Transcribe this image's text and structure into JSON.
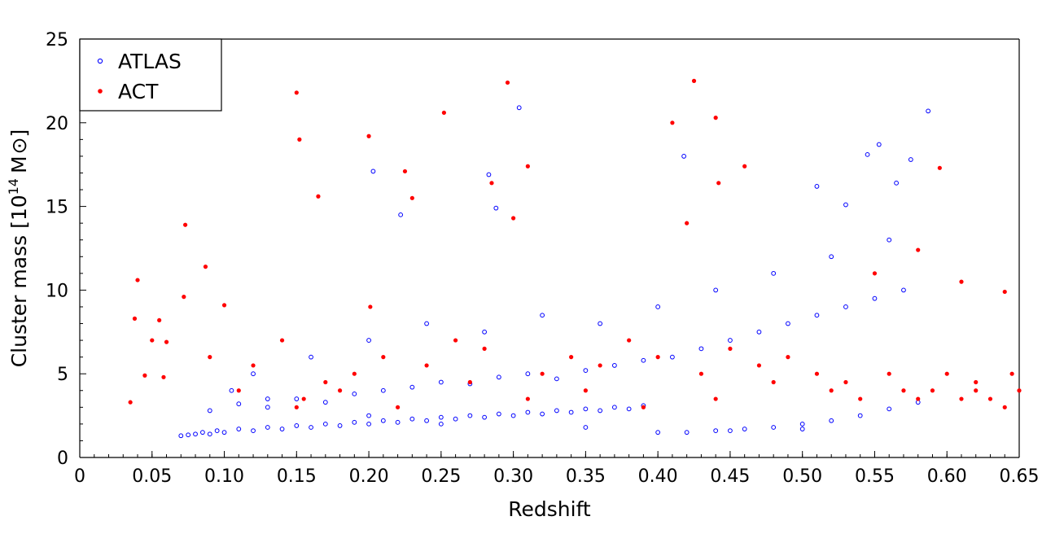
{
  "chart_data": {
    "type": "scatter",
    "xlabel": "Redshift",
    "ylabel": "Cluster mass [10",
    "ylabel_sup": "14",
    "ylabel_unit": "M",
    "ylabel_close": "]",
    "xlim": [
      0,
      0.65
    ],
    "ylim": [
      0,
      25
    ],
    "x_ticks": [
      "0",
      "0.05",
      "0.10",
      "0.15",
      "0.20",
      "0.25",
      "0.30",
      "0.35",
      "0.40",
      "0.45",
      "0.50",
      "0.55",
      "0.60",
      "0.65"
    ],
    "y_ticks": [
      "0",
      "5",
      "10",
      "15",
      "20",
      "25"
    ],
    "grid": false,
    "legend_position": "top-left",
    "series": [
      {
        "name": "ATLAS",
        "marker": "open-circle",
        "color": "#0000ff",
        "x": [
          0.07,
          0.075,
          0.08,
          0.085,
          0.09,
          0.095,
          0.1,
          0.11,
          0.12,
          0.13,
          0.14,
          0.15,
          0.16,
          0.17,
          0.18,
          0.19,
          0.2,
          0.21,
          0.22,
          0.23,
          0.24,
          0.25,
          0.26,
          0.27,
          0.28,
          0.29,
          0.3,
          0.31,
          0.32,
          0.33,
          0.34,
          0.35,
          0.36,
          0.37,
          0.38,
          0.39,
          0.4,
          0.42,
          0.44,
          0.46,
          0.48,
          0.5,
          0.52,
          0.54,
          0.56,
          0.58,
          0.09,
          0.11,
          0.13,
          0.15,
          0.17,
          0.19,
          0.21,
          0.23,
          0.25,
          0.27,
          0.29,
          0.31,
          0.33,
          0.35,
          0.37,
          0.39,
          0.41,
          0.43,
          0.45,
          0.47,
          0.49,
          0.51,
          0.53,
          0.55,
          0.57,
          0.12,
          0.16,
          0.2,
          0.24,
          0.28,
          0.32,
          0.36,
          0.4,
          0.44,
          0.48,
          0.52,
          0.56,
          0.203,
          0.222,
          0.283,
          0.288,
          0.304,
          0.418,
          0.545,
          0.553,
          0.565,
          0.575,
          0.587,
          0.51,
          0.53,
          0.105,
          0.13,
          0.2,
          0.25,
          0.35,
          0.45,
          0.5
        ],
        "y": [
          1.3,
          1.35,
          1.4,
          1.5,
          1.4,
          1.6,
          1.5,
          1.7,
          1.6,
          1.8,
          1.7,
          1.9,
          1.8,
          2.0,
          1.9,
          2.1,
          2.0,
          2.2,
          2.1,
          2.3,
          2.2,
          2.4,
          2.3,
          2.5,
          2.4,
          2.6,
          2.5,
          2.7,
          2.6,
          2.8,
          2.7,
          2.9,
          2.8,
          3.0,
          2.9,
          3.1,
          1.5,
          1.5,
          1.6,
          1.7,
          1.8,
          2.0,
          2.2,
          2.5,
          2.9,
          3.3,
          2.8,
          3.2,
          3.0,
          3.5,
          3.3,
          3.8,
          4.0,
          4.2,
          4.5,
          4.4,
          4.8,
          5.0,
          4.7,
          5.2,
          5.5,
          5.8,
          6.0,
          6.5,
          7.0,
          7.5,
          8.0,
          8.5,
          9.0,
          9.5,
          10.0,
          5.0,
          6.0,
          7.0,
          8.0,
          7.5,
          8.5,
          8.0,
          9.0,
          10.0,
          11.0,
          12.0,
          13.0,
          17.1,
          14.5,
          16.9,
          14.9,
          20.9,
          18.0,
          18.1,
          18.7,
          16.4,
          17.8,
          20.7,
          16.2,
          15.1,
          4.0,
          3.5,
          2.5,
          2.0,
          1.8,
          1.6,
          1.7
        ]
      },
      {
        "name": "ACT",
        "marker": "filled-circle",
        "color": "#ff0000",
        "x": [
          0.035,
          0.038,
          0.04,
          0.045,
          0.05,
          0.055,
          0.058,
          0.06,
          0.072,
          0.073,
          0.087,
          0.1,
          0.11,
          0.15,
          0.152,
          0.155,
          0.165,
          0.2,
          0.201,
          0.225,
          0.23,
          0.252,
          0.296,
          0.31,
          0.3,
          0.285,
          0.41,
          0.42,
          0.425,
          0.44,
          0.442,
          0.46,
          0.55,
          0.58,
          0.595,
          0.61,
          0.64,
          0.09,
          0.12,
          0.14,
          0.17,
          0.19,
          0.21,
          0.24,
          0.26,
          0.28,
          0.32,
          0.34,
          0.36,
          0.38,
          0.4,
          0.43,
          0.45,
          0.47,
          0.49,
          0.51,
          0.53,
          0.56,
          0.57,
          0.59,
          0.6,
          0.61,
          0.62,
          0.63,
          0.64,
          0.645,
          0.65,
          0.15,
          0.18,
          0.22,
          0.27,
          0.31,
          0.35,
          0.39,
          0.44,
          0.48,
          0.52,
          0.54,
          0.58,
          0.62
        ],
        "y": [
          3.3,
          8.3,
          10.6,
          4.9,
          7.0,
          8.2,
          4.8,
          6.9,
          9.6,
          13.9,
          11.4,
          9.1,
          4.0,
          21.8,
          19.0,
          3.5,
          15.6,
          19.2,
          9.0,
          17.1,
          15.5,
          20.6,
          22.4,
          17.4,
          14.3,
          16.4,
          20.0,
          14.0,
          22.5,
          20.3,
          16.4,
          17.4,
          11.0,
          12.4,
          17.3,
          10.5,
          9.9,
          6.0,
          5.5,
          7.0,
          4.5,
          5.0,
          6.0,
          5.5,
          7.0,
          6.5,
          5.0,
          6.0,
          5.5,
          7.0,
          6.0,
          5.0,
          6.5,
          5.5,
          6.0,
          5.0,
          4.5,
          5.0,
          4.0,
          4.0,
          5.0,
          3.5,
          4.5,
          3.5,
          3.0,
          5.0,
          4.0,
          3.0,
          4.0,
          3.0,
          4.5,
          3.5,
          4.0,
          3.0,
          3.5,
          4.5,
          4.0,
          3.5,
          3.5,
          4.0
        ]
      }
    ]
  }
}
